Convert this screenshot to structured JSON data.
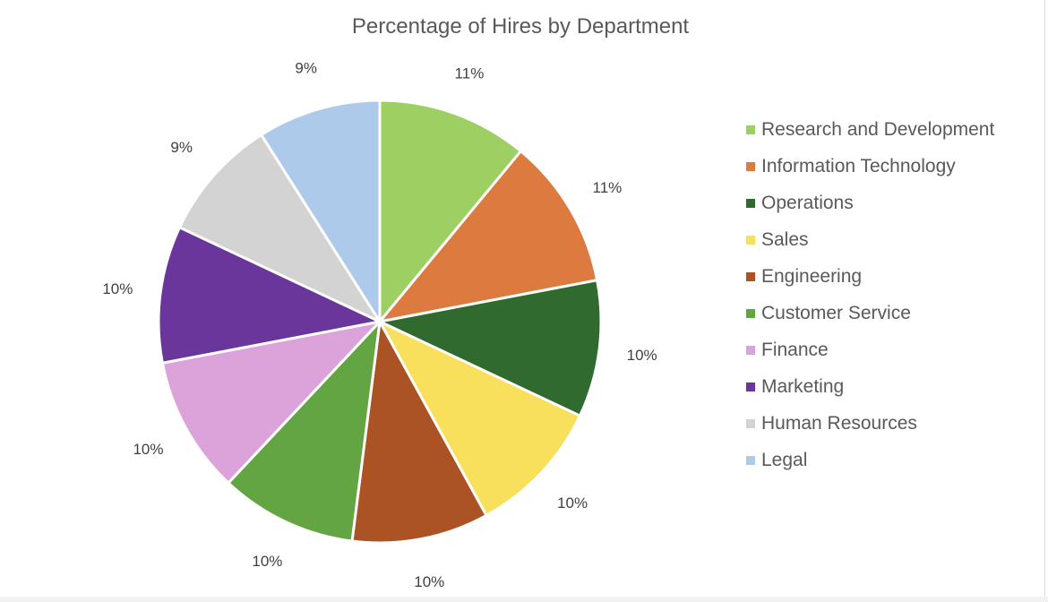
{
  "chart_data": {
    "type": "pie",
    "title": "Percentage of Hires by Department",
    "categories": [
      "Research and Development",
      "Information Technology",
      "Operations",
      "Sales",
      "Engineering",
      "Customer Service",
      "Finance",
      "Marketing",
      "Human Resources",
      "Legal"
    ],
    "values": [
      11,
      11,
      10,
      10,
      10,
      10,
      10,
      10,
      9,
      9
    ],
    "data_labels": [
      "11%",
      "11%",
      "10%",
      "10%",
      "10%",
      "10%",
      "10%",
      "10%",
      "9%",
      "9%"
    ],
    "colors": [
      "#9ecf63",
      "#dc7a40",
      "#316a2e",
      "#f8df5c",
      "#ac5326",
      "#64a543",
      "#dba3da",
      "#6a369b",
      "#d3d3d3",
      "#aecaeb"
    ],
    "legend_position": "right"
  }
}
